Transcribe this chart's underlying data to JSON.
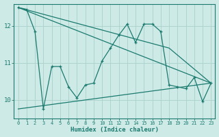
{
  "xlabel": "Humidex (Indice chaleur)",
  "background_color": "#ceeae7",
  "grid_color": "#aed4d0",
  "line_color": "#1a7a6e",
  "xlim": [
    -0.5,
    23.5
  ],
  "ylim": [
    9.5,
    12.6
  ],
  "yticks": [
    10,
    11,
    12
  ],
  "xtick_labels": [
    "0",
    "1",
    "2",
    "3",
    "4",
    "5",
    "6",
    "7",
    "8",
    "9",
    "10",
    "11",
    "12",
    "13",
    "14",
    "15",
    "16",
    "17",
    "18",
    "19",
    "20",
    "21",
    "22",
    "23"
  ],
  "main_x": [
    0,
    1,
    2,
    3,
    4,
    5,
    6,
    7,
    8,
    9,
    10,
    11,
    12,
    13,
    14,
    15,
    16,
    17,
    18,
    19,
    20,
    21,
    22,
    23
  ],
  "main_y": [
    12.5,
    12.45,
    11.85,
    9.75,
    10.9,
    10.9,
    10.35,
    10.05,
    10.4,
    10.45,
    11.05,
    11.4,
    11.75,
    12.05,
    11.55,
    12.05,
    12.05,
    11.85,
    10.4,
    10.35,
    10.3,
    10.6,
    9.95,
    10.45
  ],
  "straight_lines": [
    {
      "x": [
        0,
        23
      ],
      "y": [
        12.5,
        10.45
      ]
    },
    {
      "x": [
        0,
        18,
        23
      ],
      "y": [
        12.5,
        11.4,
        10.45
      ]
    },
    {
      "x": [
        0,
        23
      ],
      "y": [
        9.75,
        10.45
      ]
    }
  ]
}
